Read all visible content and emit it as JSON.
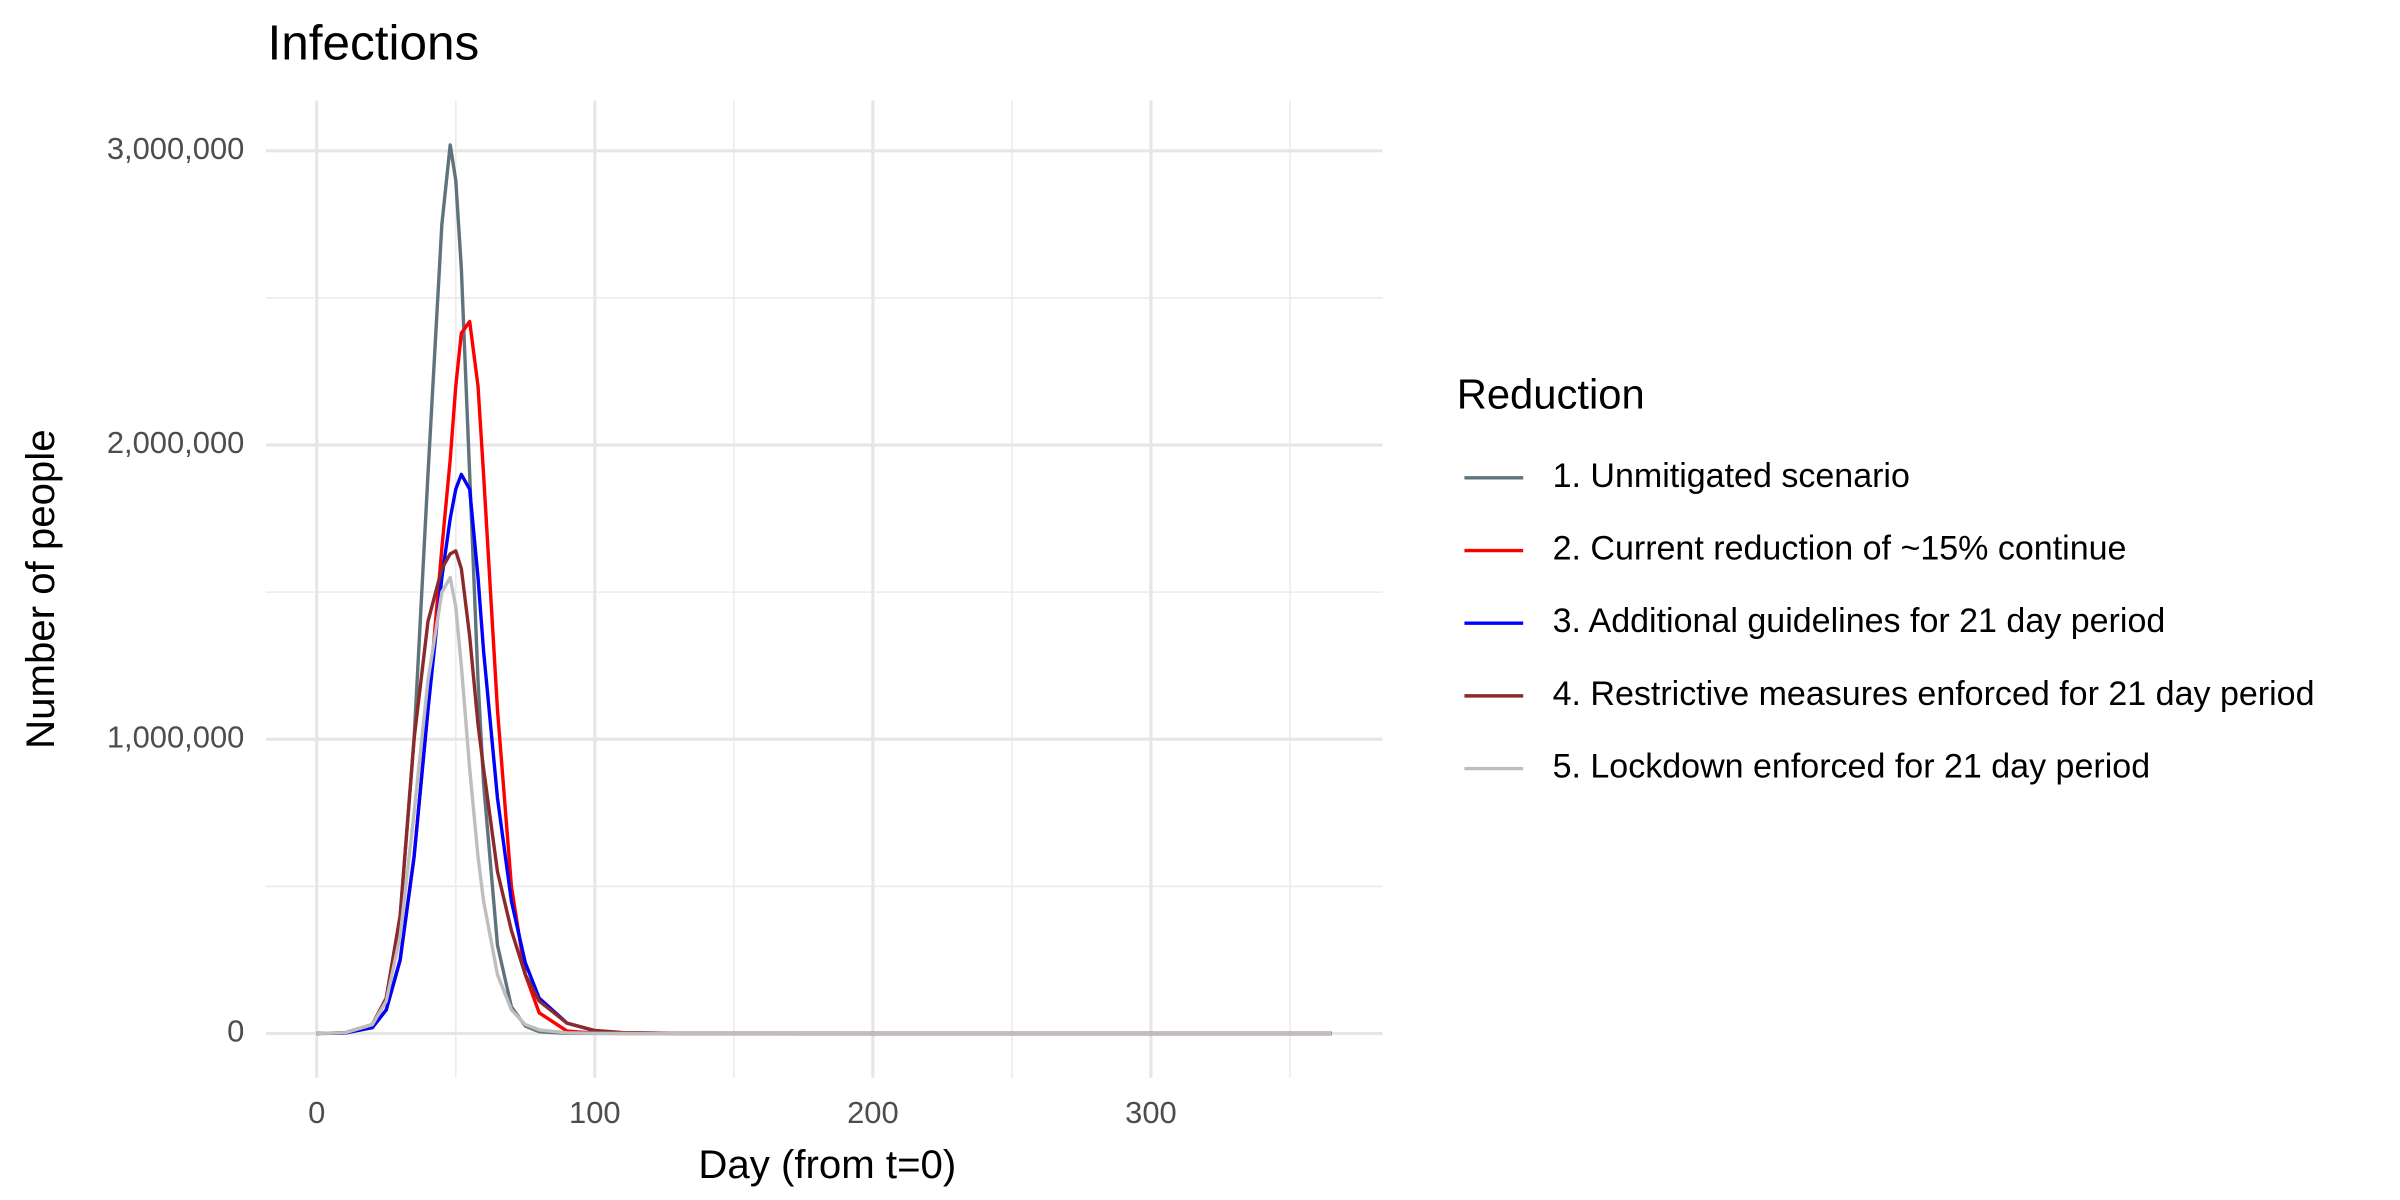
{
  "chart_data": {
    "type": "line",
    "title": "Infections",
    "x_label": "Day (from t=0)",
    "y_label": "Number of people",
    "legend_title": "Reduction",
    "legend_position": "right",
    "grid": true,
    "x": [
      0,
      10,
      20,
      25,
      30,
      35,
      40,
      45,
      48,
      50,
      52,
      55,
      58,
      60,
      65,
      70,
      75,
      80,
      90,
      100,
      110,
      130,
      200,
      300,
      365
    ],
    "series": [
      {
        "name": "1. Unmitigated scenario",
        "color": "#5f737c",
        "values": [
          0,
          2000,
          30000,
          120000,
          400000,
          1000000,
          1900000,
          2750000,
          3020000,
          2900000,
          2600000,
          1900000,
          1200000,
          850000,
          300000,
          90000,
          25000,
          6000,
          300,
          0,
          0,
          0,
          0,
          0,
          0
        ]
      },
      {
        "name": "2. Current reduction of ~15% continue",
        "color": "#ff0000",
        "values": [
          0,
          1000,
          20000,
          80000,
          250000,
          600000,
          1100000,
          1650000,
          1950000,
          2200000,
          2380000,
          2420000,
          2200000,
          1900000,
          1100000,
          500000,
          200000,
          70000,
          8000,
          800,
          0,
          0,
          0,
          0,
          0
        ]
      },
      {
        "name": "3. Additional guidelines for 21 day period",
        "color": "#0000ff",
        "values": [
          0,
          1000,
          20000,
          80000,
          250000,
          600000,
          1100000,
          1550000,
          1750000,
          1850000,
          1900000,
          1850000,
          1550000,
          1300000,
          800000,
          450000,
          240000,
          120000,
          35000,
          9000,
          2000,
          0,
          0,
          0,
          0
        ]
      },
      {
        "name": "4. Restrictive measures enforced for 21 day period",
        "color": "#8b2a2a",
        "values": [
          0,
          2000,
          30000,
          120000,
          400000,
          1000000,
          1400000,
          1580000,
          1630000,
          1640000,
          1580000,
          1350000,
          1050000,
          900000,
          550000,
          350000,
          200000,
          110000,
          35000,
          10000,
          3000,
          500,
          0,
          0,
          0
        ]
      },
      {
        "name": "5. Lockdown enforced for 21 day period",
        "color": "#bebebe",
        "values": [
          0,
          2000,
          30000,
          110000,
          330000,
          750000,
          1200000,
          1500000,
          1550000,
          1450000,
          1250000,
          900000,
          600000,
          450000,
          200000,
          80000,
          30000,
          12000,
          2000,
          300,
          0,
          0,
          0,
          0,
          0
        ]
      }
    ],
    "xlim": [
      -18.25,
      383.25
    ],
    "ylim": [
      -151000,
      3171000
    ],
    "xticks": [
      0,
      100,
      200,
      300
    ],
    "minor_xticks": [
      50,
      150,
      250,
      350
    ],
    "yticks": [
      0,
      {
        "value": 1000000,
        "label": "1,000,000"
      },
      {
        "value": 2000000,
        "label": "2,000,000"
      },
      {
        "value": 3000000,
        "label": "3,000,000"
      }
    ],
    "minor_yticks": [
      500000,
      1500000,
      2500000
    ]
  }
}
